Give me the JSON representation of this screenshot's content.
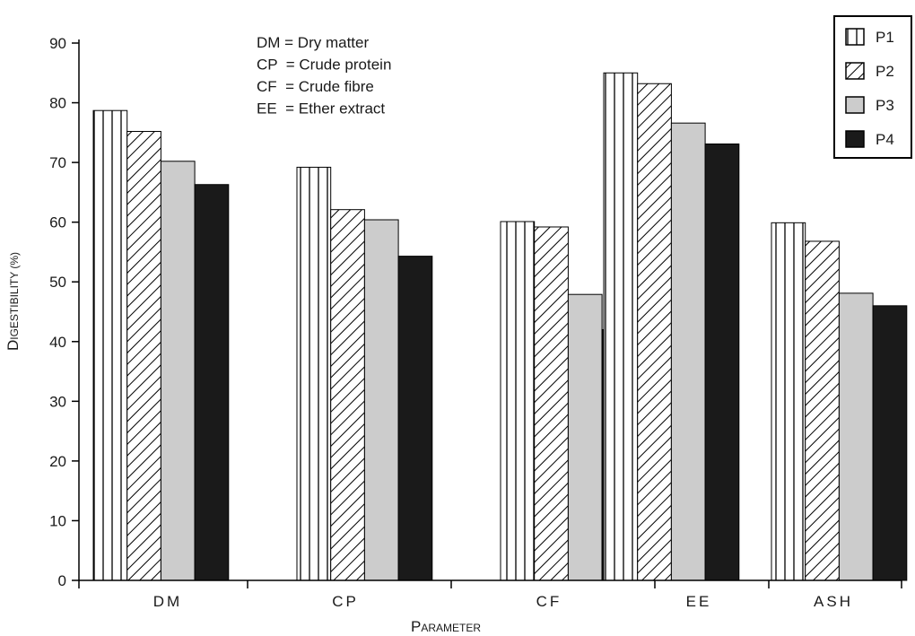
{
  "chart_data": {
    "type": "bar",
    "categories": [
      "DM",
      "CP",
      "CF",
      "EE",
      "ASH"
    ],
    "series": [
      {
        "name": "P1",
        "values": [
          78.7,
          69.2,
          60.1,
          85.0,
          59.9
        ],
        "fill": "vertical-stripes",
        "color": "#000000"
      },
      {
        "name": "P2",
        "values": [
          75.2,
          62.1,
          59.2,
          83.2,
          56.8
        ],
        "fill": "diagonal-hatch",
        "color": "#000000"
      },
      {
        "name": "P3",
        "values": [
          70.2,
          60.4,
          47.9,
          76.6,
          48.1
        ],
        "fill": "solid",
        "color": "#cccccc"
      },
      {
        "name": "P4",
        "values": [
          66.3,
          54.3,
          42.0,
          73.1,
          46.0
        ],
        "fill": "solid",
        "color": "#1a1a1a"
      }
    ],
    "xlabel": "Parameter",
    "ylabel": "Digestibility (%)",
    "ylim": [
      0,
      90
    ],
    "yticks": [
      "0",
      "10",
      "20",
      "30",
      "40",
      "50",
      "60",
      "70",
      "80",
      "90"
    ],
    "grid": false,
    "legend_position": "top-right",
    "annotations": [
      "DM = Dry matter",
      "CP  = Crude protein",
      "CF  = Crude fibre",
      "EE  = Ether extract"
    ]
  }
}
